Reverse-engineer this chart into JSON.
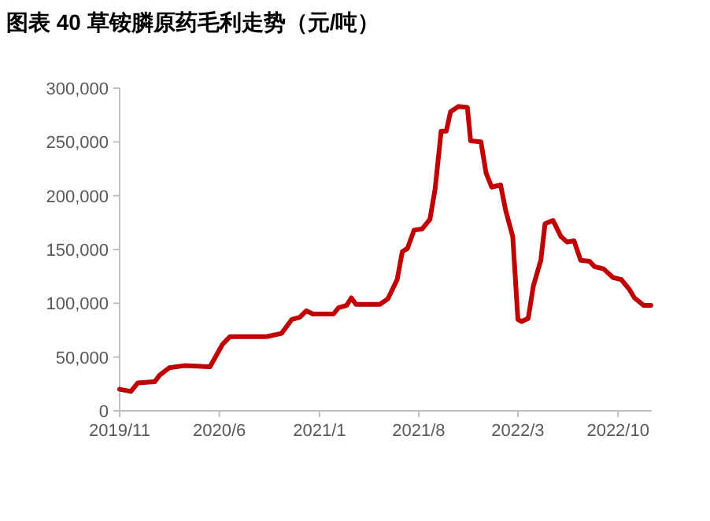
{
  "chart_data": {
    "type": "line",
    "title": "图表 40 草铵膦原药毛利走势（元/吨）",
    "x": [
      "2019-11-01",
      "2019-11-25",
      "2019-12-10",
      "2020-01-15",
      "2020-01-25",
      "2020-02-15",
      "2020-03-18",
      "2020-05-12",
      "2020-06-08",
      "2020-06-24",
      "2020-09-10",
      "2020-10-12",
      "2020-11-03",
      "2020-11-20",
      "2020-12-04",
      "2020-12-18",
      "2021-01-31",
      "2021-02-11",
      "2021-02-28",
      "2021-03-10",
      "2021-03-20",
      "2021-05-10",
      "2021-05-27",
      "2021-06-16",
      "2021-06-27",
      "2021-07-08",
      "2021-07-22",
      "2021-08-08",
      "2021-08-25",
      "2021-09-05",
      "2021-09-18",
      "2021-09-29",
      "2021-10-08",
      "2021-10-25",
      "2021-11-13",
      "2021-11-20",
      "2021-12-12",
      "2021-12-23",
      "2022-01-04",
      "2022-01-23",
      "2022-02-03",
      "2022-02-18",
      "2022-03-01",
      "2022-03-09",
      "2022-03-23",
      "2022-04-03",
      "2022-04-19",
      "2022-04-28",
      "2022-05-15",
      "2022-06-01",
      "2022-06-14",
      "2022-06-29",
      "2022-07-13",
      "2022-08-01",
      "2022-08-12",
      "2022-08-31",
      "2022-09-20",
      "2022-10-08",
      "2022-10-25",
      "2022-11-05",
      "2022-11-25",
      "2022-12-10"
    ],
    "series": [
      {
        "color": "#c00000",
        "values": [
          20000,
          18000,
          26000,
          27000,
          33000,
          40000,
          42000,
          41000,
          62000,
          69000,
          69000,
          72000,
          85000,
          87000,
          93000,
          90000,
          90000,
          96000,
          98000,
          105000,
          99000,
          99000,
          104000,
          122000,
          148000,
          151000,
          168000,
          169000,
          178000,
          206000,
          260000,
          260000,
          278000,
          283000,
          282000,
          251000,
          250000,
          221000,
          208000,
          210000,
          186000,
          162000,
          85000,
          83000,
          86000,
          116000,
          140000,
          174000,
          177000,
          162000,
          157000,
          158000,
          140000,
          139000,
          134000,
          132000,
          124000,
          122000,
          113000,
          105000,
          98000,
          98000
        ]
      }
    ],
    "xlim": [
      "2019-11-01",
      "2022-12-12"
    ],
    "xticks": [
      {
        "value": "2019-11",
        "label": "2019/11"
      },
      {
        "value": "2020-06",
        "label": "2020/6"
      },
      {
        "value": "2021-01",
        "label": "2021/1"
      },
      {
        "value": "2021-08",
        "label": "2021/8"
      },
      {
        "value": "2022-03",
        "label": "2022/3"
      },
      {
        "value": "2022-10",
        "label": "2022/10"
      }
    ],
    "ylim": [
      0,
      300000
    ],
    "yticks": [
      {
        "value": 0,
        "label": "0"
      },
      {
        "value": 50000,
        "label": "50,000"
      },
      {
        "value": 100000,
        "label": "100,000"
      },
      {
        "value": 150000,
        "label": "150,000"
      },
      {
        "value": 200000,
        "label": "200,000"
      },
      {
        "value": 250000,
        "label": "250,000"
      },
      {
        "value": 300000,
        "label": "300,000"
      }
    ]
  }
}
